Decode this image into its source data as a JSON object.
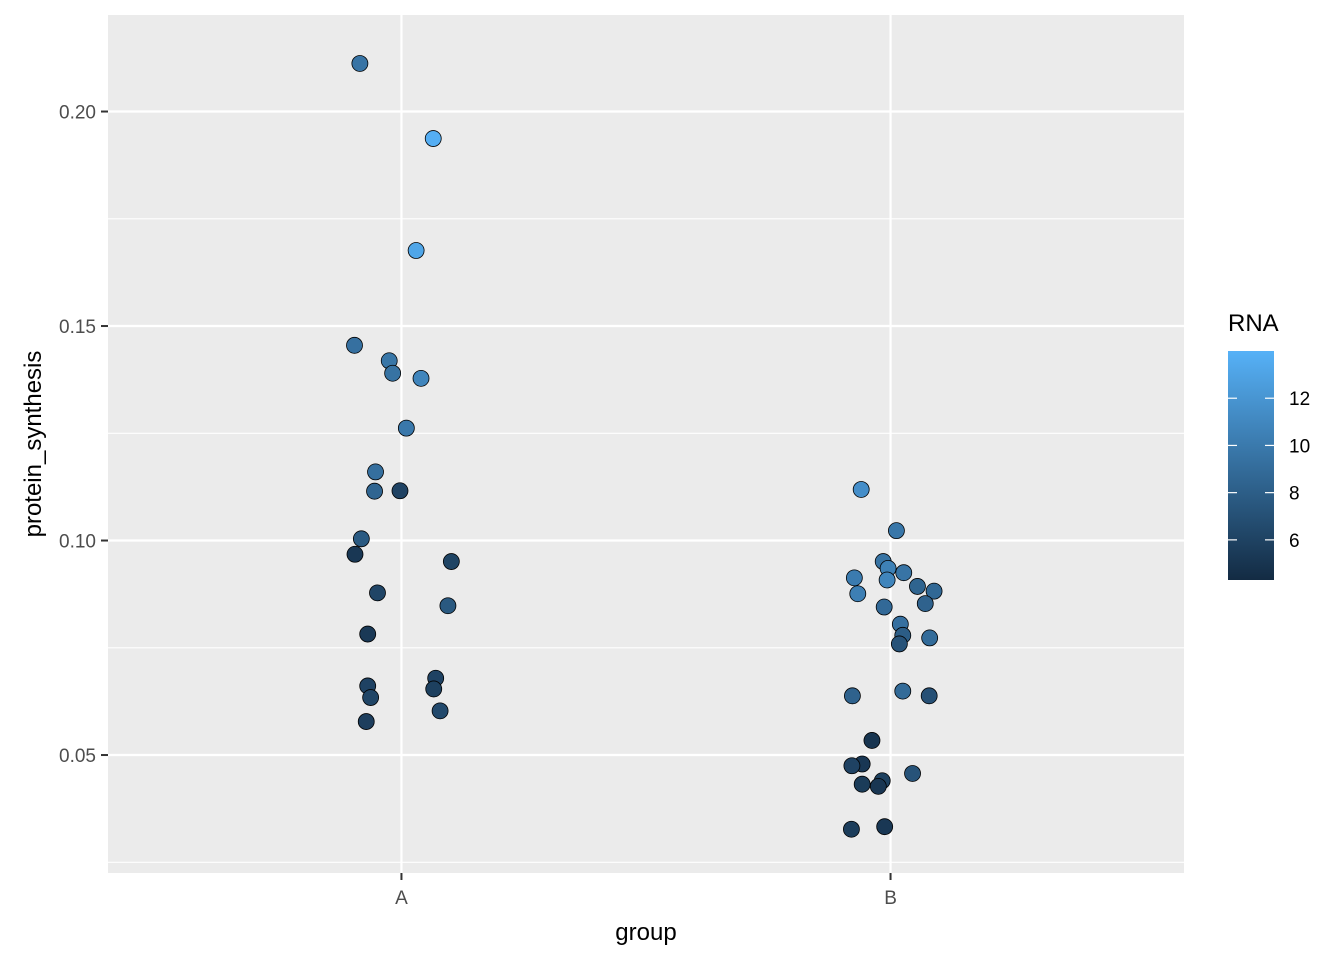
{
  "chart_data": {
    "type": "scatter",
    "xlabel": "group",
    "ylabel": "protein_synthesis",
    "categories": [
      "A",
      "B"
    ],
    "ylim": [
      0.0225,
      0.2225
    ],
    "y_ticks": [
      0.05,
      0.1,
      0.15,
      0.2
    ],
    "y_tick_labels": [
      "0.05",
      "0.10",
      "0.15",
      "0.20"
    ],
    "grid": true,
    "legend": {
      "title": "RNA",
      "position": "right",
      "type": "colorbar",
      "range": [
        4.3,
        14.0
      ],
      "ticks": [
        6,
        8,
        10,
        12
      ],
      "tick_labels": [
        "6",
        "8",
        "10",
        "12"
      ],
      "color_low": "#132B43",
      "color_high": "#56B1F7"
    },
    "points": [
      {
        "group": "A",
        "jitter": -0.085,
        "y": 0.2112,
        "rna": 9.6
      },
      {
        "group": "A",
        "jitter": 0.065,
        "y": 0.1937,
        "rna": 13.8
      },
      {
        "group": "A",
        "jitter": 0.03,
        "y": 0.1676,
        "rna": 13.2
      },
      {
        "group": "A",
        "jitter": -0.096,
        "y": 0.1455,
        "rna": 9.3
      },
      {
        "group": "A",
        "jitter": -0.025,
        "y": 0.1419,
        "rna": 9.7
      },
      {
        "group": "A",
        "jitter": -0.018,
        "y": 0.139,
        "rna": 9.5
      },
      {
        "group": "A",
        "jitter": 0.04,
        "y": 0.1378,
        "rna": 10.8
      },
      {
        "group": "A",
        "jitter": 0.01,
        "y": 0.1262,
        "rna": 9.9
      },
      {
        "group": "A",
        "jitter": -0.053,
        "y": 0.116,
        "rna": 9.2
      },
      {
        "group": "A",
        "jitter": -0.055,
        "y": 0.1115,
        "rna": 8.5
      },
      {
        "group": "A",
        "jitter": -0.003,
        "y": 0.1116,
        "rna": 6.0
      },
      {
        "group": "A",
        "jitter": -0.082,
        "y": 0.1004,
        "rna": 7.7
      },
      {
        "group": "A",
        "jitter": -0.095,
        "y": 0.0968,
        "rna": 5.2
      },
      {
        "group": "A",
        "jitter": 0.102,
        "y": 0.0951,
        "rna": 6.1
      },
      {
        "group": "A",
        "jitter": -0.049,
        "y": 0.0878,
        "rna": 6.2
      },
      {
        "group": "A",
        "jitter": 0.095,
        "y": 0.0848,
        "rna": 7.6
      },
      {
        "group": "A",
        "jitter": -0.069,
        "y": 0.0782,
        "rna": 5.3
      },
      {
        "group": "A",
        "jitter": 0.07,
        "y": 0.0679,
        "rna": 6.0
      },
      {
        "group": "A",
        "jitter": -0.069,
        "y": 0.0661,
        "rna": 6.0
      },
      {
        "group": "A",
        "jitter": 0.066,
        "y": 0.0654,
        "rna": 5.8
      },
      {
        "group": "A",
        "jitter": -0.063,
        "y": 0.0634,
        "rna": 6.2
      },
      {
        "group": "A",
        "jitter": 0.079,
        "y": 0.0603,
        "rna": 6.5
      },
      {
        "group": "A",
        "jitter": -0.072,
        "y": 0.0578,
        "rna": 5.7
      },
      {
        "group": "B",
        "jitter": -0.06,
        "y": 0.1119,
        "rna": 11.5
      },
      {
        "group": "B",
        "jitter": 0.012,
        "y": 0.1023,
        "rna": 9.8
      },
      {
        "group": "B",
        "jitter": -0.015,
        "y": 0.0951,
        "rna": 9.5
      },
      {
        "group": "B",
        "jitter": -0.005,
        "y": 0.0935,
        "rna": 10.5
      },
      {
        "group": "B",
        "jitter": 0.027,
        "y": 0.0925,
        "rna": 9.6
      },
      {
        "group": "B",
        "jitter": -0.074,
        "y": 0.0913,
        "rna": 10.1
      },
      {
        "group": "B",
        "jitter": -0.007,
        "y": 0.0908,
        "rna": 10.8
      },
      {
        "group": "B",
        "jitter": 0.055,
        "y": 0.0893,
        "rna": 8.4
      },
      {
        "group": "B",
        "jitter": 0.089,
        "y": 0.0882,
        "rna": 8.7
      },
      {
        "group": "B",
        "jitter": -0.067,
        "y": 0.0876,
        "rna": 10.4
      },
      {
        "group": "B",
        "jitter": 0.071,
        "y": 0.0853,
        "rna": 8.3
      },
      {
        "group": "B",
        "jitter": -0.013,
        "y": 0.0845,
        "rna": 8.8
      },
      {
        "group": "B",
        "jitter": 0.02,
        "y": 0.0805,
        "rna": 9.3
      },
      {
        "group": "B",
        "jitter": 0.025,
        "y": 0.0779,
        "rna": 7.9
      },
      {
        "group": "B",
        "jitter": 0.08,
        "y": 0.0773,
        "rna": 9.0
      },
      {
        "group": "B",
        "jitter": 0.018,
        "y": 0.0759,
        "rna": 7.2
      },
      {
        "group": "B",
        "jitter": 0.025,
        "y": 0.0649,
        "rna": 8.9
      },
      {
        "group": "B",
        "jitter": -0.078,
        "y": 0.0638,
        "rna": 8.3
      },
      {
        "group": "B",
        "jitter": 0.079,
        "y": 0.0638,
        "rna": 7.0
      },
      {
        "group": "B",
        "jitter": -0.038,
        "y": 0.0534,
        "rna": 5.0
      },
      {
        "group": "B",
        "jitter": -0.058,
        "y": 0.0479,
        "rna": 5.2
      },
      {
        "group": "B",
        "jitter": -0.079,
        "y": 0.0475,
        "rna": 6.0
      },
      {
        "group": "B",
        "jitter": 0.045,
        "y": 0.0457,
        "rna": 7.2
      },
      {
        "group": "B",
        "jitter": -0.017,
        "y": 0.044,
        "rna": 5.8
      },
      {
        "group": "B",
        "jitter": -0.058,
        "y": 0.0432,
        "rna": 5.5
      },
      {
        "group": "B",
        "jitter": -0.025,
        "y": 0.0427,
        "rna": 5.1
      },
      {
        "group": "B",
        "jitter": -0.012,
        "y": 0.0333,
        "rna": 5.2
      },
      {
        "group": "B",
        "jitter": -0.08,
        "y": 0.0327,
        "rna": 5.6
      }
    ]
  }
}
